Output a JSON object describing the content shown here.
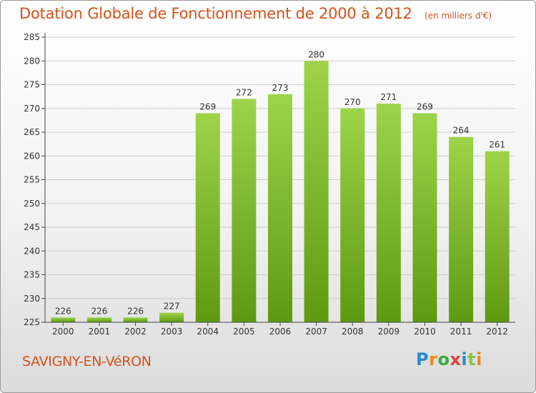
{
  "header": {
    "title": "Dotation Globale de Fonctionnement de 2000 à 2012",
    "unit": "(en milliers d'€)"
  },
  "footer": {
    "commune": "SAVIGNY-EN-VéRON",
    "brand": "Proxiti",
    "brand_colors": [
      "#2a8ad6",
      "#f08a1a",
      "#3aaa35",
      "#e53e3e",
      "#2a8ad6",
      "#8bc34a",
      "#f08a1a"
    ]
  },
  "colors": {
    "title": "#d2521b",
    "bar_top": "#9dd44a",
    "bar_bottom": "#5e9a10",
    "grid": "#cccccc",
    "axis": "#444444"
  },
  "chart_data": {
    "type": "bar",
    "categories": [
      "2000",
      "2001",
      "2002",
      "2003",
      "2004",
      "2005",
      "2006",
      "2007",
      "2008",
      "2009",
      "2010",
      "2011",
      "2012"
    ],
    "values": [
      226,
      226,
      226,
      227,
      269,
      272,
      273,
      280,
      270,
      271,
      269,
      264,
      261
    ],
    "ylim": [
      225,
      285
    ],
    "yticks": [
      225,
      230,
      235,
      240,
      245,
      250,
      255,
      260,
      265,
      270,
      275,
      280,
      285
    ],
    "grid": true,
    "legend": "none"
  }
}
